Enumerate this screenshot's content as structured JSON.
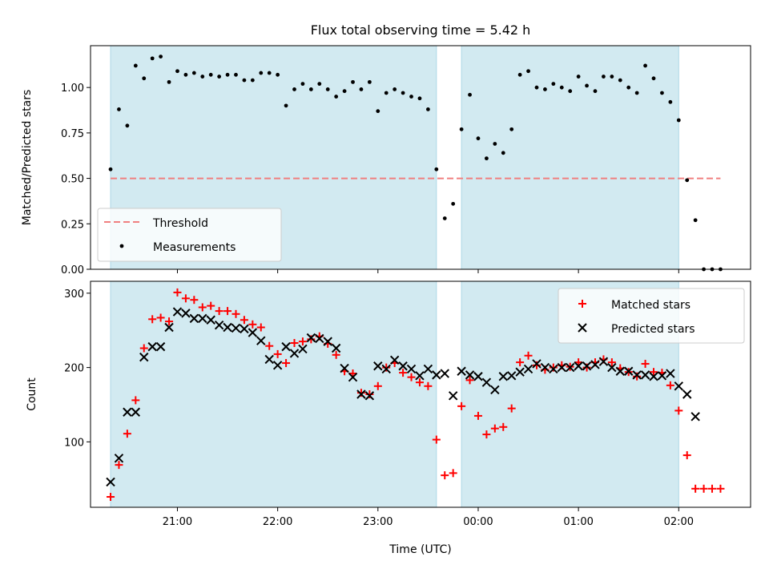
{
  "figure_title": "Flux total observing time = 5.42 h",
  "colors": {
    "shade": "#add8e6",
    "threshold": "#f08080",
    "measurement": "#000000",
    "matched": "#ff0000",
    "predicted": "#000000"
  },
  "chart_data": [
    {
      "type": "scatter",
      "panel": "top",
      "ylabel": "Matched/Predicted stars",
      "ylim": [
        0,
        1.23
      ],
      "yticks": [
        "0.00",
        "0.25",
        "0.50",
        "0.75",
        "1.00"
      ],
      "ytick_values": [
        0,
        0.25,
        0.5,
        0.75,
        1.0
      ],
      "x_range": [
        "20:08",
        "02:43"
      ],
      "xticks": [
        "21:00",
        "22:00",
        "23:00",
        "00:00",
        "01:00",
        "02:00"
      ],
      "shaded_intervals": [
        [
          "20:20",
          "23:35"
        ],
        [
          "23:50",
          "02:00"
        ]
      ],
      "threshold": {
        "label": "Threshold",
        "value": 0.5,
        "from": "20:20",
        "to": "02:25"
      },
      "legend": {
        "position": "lower-left",
        "entries": [
          "Threshold",
          "Measurements"
        ]
      },
      "series": [
        {
          "name": "Measurements",
          "x": [
            "20:20",
            "20:25",
            "20:30",
            "20:35",
            "20:40",
            "20:45",
            "20:50",
            "20:55",
            "21:00",
            "21:05",
            "21:10",
            "21:15",
            "21:20",
            "21:25",
            "21:30",
            "21:35",
            "21:40",
            "21:45",
            "21:50",
            "21:55",
            "22:00",
            "22:05",
            "22:10",
            "22:15",
            "22:20",
            "22:25",
            "22:30",
            "22:35",
            "22:40",
            "22:45",
            "22:50",
            "22:55",
            "23:00",
            "23:05",
            "23:10",
            "23:15",
            "23:20",
            "23:25",
            "23:30",
            "23:35",
            "23:40",
            "23:45",
            "23:50",
            "23:55",
            "00:00",
            "00:05",
            "00:10",
            "00:15",
            "00:20",
            "00:25",
            "00:30",
            "00:35",
            "00:40",
            "00:45",
            "00:50",
            "00:55",
            "01:00",
            "01:05",
            "01:10",
            "01:15",
            "01:20",
            "01:25",
            "01:30",
            "01:35",
            "01:40",
            "01:45",
            "01:50",
            "01:55",
            "02:00",
            "02:05",
            "02:10",
            "02:15",
            "02:20",
            "02:25"
          ],
          "values": [
            0.55,
            0.88,
            0.79,
            1.12,
            1.05,
            1.16,
            1.17,
            1.03,
            1.09,
            1.07,
            1.08,
            1.06,
            1.07,
            1.06,
            1.07,
            1.07,
            1.04,
            1.04,
            1.08,
            1.08,
            1.07,
            0.9,
            0.99,
            1.02,
            0.99,
            1.02,
            0.99,
            0.95,
            0.98,
            1.03,
            0.99,
            1.03,
            0.87,
            0.97,
            0.99,
            0.97,
            0.95,
            0.94,
            0.88,
            0.55,
            0.28,
            0.36,
            0.77,
            0.96,
            0.72,
            0.61,
            0.69,
            0.64,
            0.77,
            1.07,
            1.09,
            1.0,
            0.99,
            1.02,
            1.0,
            0.98,
            1.06,
            1.01,
            0.98,
            1.06,
            1.06,
            1.04,
            1.0,
            0.97,
            1.12,
            1.05,
            0.97,
            0.92,
            0.82,
            0.49,
            0.27,
            0.0,
            0.0,
            0.0
          ]
        }
      ]
    },
    {
      "type": "scatter",
      "panel": "bottom",
      "ylabel": "Count",
      "xlabel": "Time (UTC)",
      "ylim": [
        12,
        316
      ],
      "yticks": [
        "100",
        "200",
        "300"
      ],
      "ytick_values": [
        100,
        200,
        300
      ],
      "x_range": [
        "20:08",
        "02:43"
      ],
      "xticks": [
        "21:00",
        "22:00",
        "23:00",
        "00:00",
        "01:00",
        "02:00"
      ],
      "shaded_intervals": [
        [
          "20:20",
          "23:35"
        ],
        [
          "23:50",
          "02:00"
        ]
      ],
      "legend": {
        "position": "top-right",
        "entries": [
          "Matched stars",
          "Predicted stars"
        ]
      },
      "series": [
        {
          "name": "Matched stars",
          "marker": "+",
          "x": [
            "20:20",
            "20:25",
            "20:30",
            "20:35",
            "20:40",
            "20:45",
            "20:50",
            "20:55",
            "21:00",
            "21:05",
            "21:10",
            "21:15",
            "21:20",
            "21:25",
            "21:30",
            "21:35",
            "21:40",
            "21:45",
            "21:50",
            "21:55",
            "22:00",
            "22:05",
            "22:10",
            "22:15",
            "22:20",
            "22:25",
            "22:30",
            "22:35",
            "22:40",
            "22:45",
            "22:50",
            "22:55",
            "23:00",
            "23:05",
            "23:10",
            "23:15",
            "23:20",
            "23:25",
            "23:30",
            "23:35",
            "23:40",
            "23:45",
            "23:50",
            "23:55",
            "00:00",
            "00:05",
            "00:10",
            "00:15",
            "00:20",
            "00:25",
            "00:30",
            "00:35",
            "00:40",
            "00:45",
            "00:50",
            "00:55",
            "01:00",
            "01:05",
            "01:10",
            "01:15",
            "01:20",
            "01:25",
            "01:30",
            "01:35",
            "01:40",
            "01:45",
            "01:50",
            "01:55",
            "02:00",
            "02:05",
            "02:10",
            "02:15",
            "02:20",
            "02:25"
          ],
          "values": [
            26,
            69,
            111,
            156,
            226,
            265,
            267,
            262,
            301,
            293,
            291,
            281,
            283,
            276,
            276,
            272,
            264,
            258,
            254,
            229,
            218,
            206,
            233,
            235,
            238,
            242,
            232,
            217,
            195,
            192,
            166,
            164,
            175,
            200,
            206,
            193,
            187,
            180,
            175,
            103,
            55,
            58,
            148,
            183,
            135,
            110,
            118,
            120,
            145,
            207,
            216,
            203,
            197,
            200,
            203,
            201,
            207,
            200,
            207,
            211,
            207,
            199,
            194,
            188,
            205,
            194,
            193,
            176,
            142,
            82,
            37,
            37,
            37,
            37
          ]
        },
        {
          "name": "Predicted stars",
          "marker": "x",
          "x": [
            "20:20",
            "20:25",
            "20:30",
            "20:35",
            "20:40",
            "20:45",
            "20:50",
            "20:55",
            "21:00",
            "21:05",
            "21:10",
            "21:15",
            "21:20",
            "21:25",
            "21:30",
            "21:35",
            "21:40",
            "21:45",
            "21:50",
            "21:55",
            "22:00",
            "22:05",
            "22:10",
            "22:15",
            "22:20",
            "22:25",
            "22:30",
            "22:35",
            "22:40",
            "22:45",
            "22:50",
            "22:55",
            "23:00",
            "23:05",
            "23:10",
            "23:15",
            "23:20",
            "23:25",
            "23:30",
            "23:35",
            "23:40",
            "23:45",
            "23:50",
            "23:55",
            "00:00",
            "00:05",
            "00:10",
            "00:15",
            "00:20",
            "00:25",
            "00:30",
            "00:35",
            "00:40",
            "00:45",
            "00:50",
            "00:55",
            "01:00",
            "01:05",
            "01:10",
            "01:15",
            "01:20",
            "01:25",
            "01:30",
            "01:35",
            "01:40",
            "01:45",
            "01:50",
            "01:55",
            "02:00",
            "02:05",
            "02:10"
          ],
          "values": [
            46,
            78,
            140,
            140,
            214,
            228,
            228,
            254,
            275,
            273,
            266,
            266,
            264,
            257,
            254,
            253,
            252,
            247,
            236,
            211,
            203,
            228,
            219,
            225,
            240,
            239,
            235,
            226,
            199,
            187,
            164,
            162,
            202,
            198,
            210,
            202,
            198,
            189,
            198,
            190,
            192,
            162,
            195,
            190,
            188,
            180,
            170,
            188,
            189,
            194,
            198,
            205,
            200,
            198,
            200,
            200,
            202,
            202,
            204,
            208,
            200,
            195,
            195,
            190,
            190,
            188,
            189,
            192,
            175,
            164,
            134
          ]
        }
      ]
    }
  ]
}
